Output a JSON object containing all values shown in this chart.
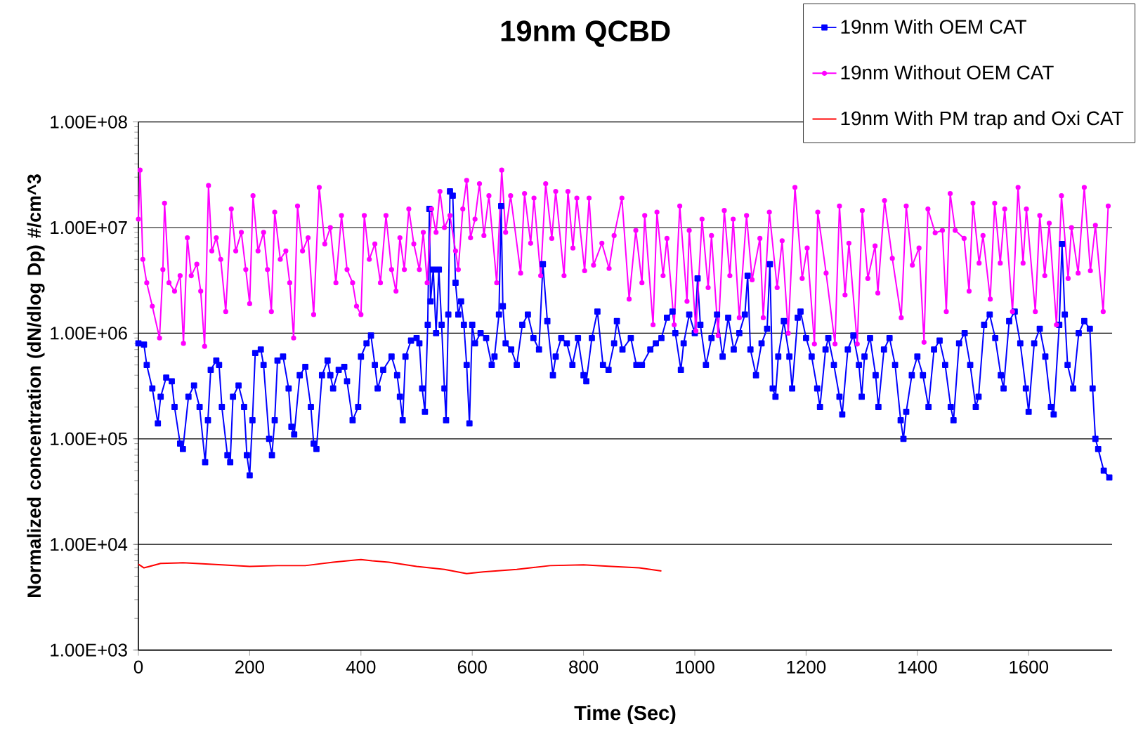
{
  "chart_data": {
    "type": "line",
    "title": "19nm QCBD",
    "xlabel": "Time (Sec)",
    "ylabel": "Normalized concentration (dN/dlog Dp) #/cm^3",
    "log": true,
    "grid": "y",
    "legend": "top right",
    "xlim": [
      0,
      1750
    ],
    "xticks": [
      0,
      200,
      400,
      600,
      800,
      1000,
      1200,
      1400,
      1600
    ],
    "ylim": [
      1000,
      100000000
    ],
    "yticks": [
      {
        "value": 1000,
        "label": "1.00E+03"
      },
      {
        "value": 10000,
        "label": "1.00E+04"
      },
      {
        "value": 100000,
        "label": "1.00E+05"
      },
      {
        "value": 1000000,
        "label": "1.00E+06"
      },
      {
        "value": 10000000,
        "label": "1.00E+07"
      },
      {
        "value": 100000000,
        "label": "1.00E+08"
      }
    ],
    "series": [
      {
        "name": "19nm With OEM CAT",
        "color": "#0000ff",
        "marker": "square",
        "x": [
          0,
          10,
          15,
          25,
          35,
          40,
          50,
          60,
          65,
          75,
          80,
          90,
          100,
          110,
          120,
          125,
          130,
          140,
          145,
          150,
          160,
          165,
          170,
          180,
          190,
          195,
          200,
          205,
          210,
          220,
          225,
          235,
          240,
          245,
          250,
          260,
          270,
          275,
          280,
          290,
          300,
          310,
          315,
          320,
          330,
          340,
          345,
          350,
          360,
          370,
          375,
          385,
          395,
          400,
          410,
          418,
          425,
          430,
          440,
          455,
          465,
          470,
          475,
          480,
          490,
          500,
          505,
          510,
          515,
          520,
          523,
          525,
          530,
          535,
          540,
          545,
          550,
          553,
          557,
          560,
          565,
          570,
          575,
          580,
          585,
          590,
          595,
          600,
          605,
          615,
          625,
          635,
          640,
          648,
          652,
          655,
          660,
          670,
          680,
          690,
          700,
          710,
          720,
          727,
          735,
          745,
          750,
          760,
          770,
          780,
          790,
          800,
          805,
          815,
          825,
          835,
          845,
          855,
          860,
          870,
          885,
          895,
          905,
          920,
          930,
          940,
          950,
          960,
          965,
          975,
          980,
          990,
          1000,
          1005,
          1010,
          1020,
          1030,
          1040,
          1050,
          1060,
          1070,
          1080,
          1090,
          1095,
          1100,
          1110,
          1120,
          1130,
          1135,
          1140,
          1145,
          1150,
          1160,
          1170,
          1175,
          1185,
          1190,
          1200,
          1210,
          1220,
          1225,
          1235,
          1240,
          1250,
          1260,
          1265,
          1275,
          1285,
          1295,
          1300,
          1305,
          1315,
          1325,
          1330,
          1340,
          1350,
          1360,
          1370,
          1375,
          1380,
          1390,
          1400,
          1410,
          1420,
          1430,
          1440,
          1450,
          1460,
          1465,
          1475,
          1485,
          1495,
          1505,
          1510,
          1520,
          1530,
          1540,
          1550,
          1555,
          1565,
          1575,
          1585,
          1595,
          1600,
          1610,
          1620,
          1630,
          1640,
          1645,
          1655,
          1660,
          1665,
          1670,
          1680,
          1690,
          1700,
          1710,
          1715,
          1720,
          1725,
          1735,
          1745
        ],
        "values": [
          800000,
          780000,
          500000,
          300000,
          140000,
          250000,
          380000,
          350000,
          200000,
          90000,
          80000,
          250000,
          320000,
          200000,
          60000,
          150000,
          450000,
          550000,
          500000,
          200000,
          70000,
          60000,
          250000,
          320000,
          200000,
          70000,
          45000,
          150000,
          650000,
          700000,
          500000,
          100000,
          70000,
          150000,
          550000,
          600000,
          300000,
          130000,
          110000,
          400000,
          480000,
          200000,
          90000,
          80000,
          400000,
          550000,
          400000,
          300000,
          450000,
          480000,
          350000,
          150000,
          200000,
          600000,
          800000,
          950000,
          500000,
          300000,
          450000,
          600000,
          400000,
          250000,
          150000,
          600000,
          850000,
          900000,
          800000,
          300000,
          180000,
          1200000,
          15000000,
          2000000,
          4000000,
          1000000,
          4000000,
          1200000,
          300000,
          150000,
          1500000,
          22000000,
          20000000,
          3000000,
          1500000,
          2000000,
          1200000,
          500000,
          140000,
          1200000,
          800000,
          1000000,
          900000,
          500000,
          600000,
          1500000,
          16000000,
          1800000,
          800000,
          700000,
          500000,
          1200000,
          1500000,
          900000,
          700000,
          4500000,
          1300000,
          400000,
          600000,
          900000,
          800000,
          500000,
          900000,
          400000,
          350000,
          900000,
          1600000,
          500000,
          450000,
          800000,
          1300000,
          700000,
          900000,
          500000,
          500000,
          700000,
          800000,
          900000,
          1400000,
          1600000,
          1000000,
          450000,
          800000,
          1500000,
          1000000,
          3300000,
          1200000,
          500000,
          900000,
          1500000,
          600000,
          1400000,
          700000,
          1000000,
          1500000,
          3500000,
          700000,
          400000,
          800000,
          1100000,
          4500000,
          300000,
          250000,
          600000,
          1300000,
          600000,
          300000,
          1400000,
          1600000,
          900000,
          600000,
          300000,
          200000,
          700000,
          900000,
          500000,
          250000,
          170000,
          700000,
          950000,
          500000,
          250000,
          600000,
          900000,
          400000,
          200000,
          700000,
          900000,
          500000,
          150000,
          100000,
          180000,
          400000,
          600000,
          400000,
          200000,
          700000,
          850000,
          500000,
          200000,
          150000,
          800000,
          1000000,
          500000,
          200000,
          250000,
          1200000,
          1500000,
          900000,
          400000,
          300000,
          1300000,
          1600000,
          800000,
          300000,
          180000,
          800000,
          1100000,
          600000,
          200000,
          170000,
          1200000,
          7000000,
          1500000,
          500000,
          300000,
          1000000,
          1300000,
          1100000,
          300000,
          100000,
          80000,
          50000,
          43000
        ]
      },
      {
        "name": "19nm Without OEM CAT",
        "color": "#ff00ff",
        "marker": "circle",
        "x": [
          0,
          3,
          8,
          15,
          25,
          38,
          44,
          47,
          55,
          65,
          75,
          81,
          88,
          95,
          105,
          112,
          119,
          126,
          132,
          140,
          148,
          157,
          167,
          175,
          185,
          193,
          200,
          206,
          215,
          225,
          232,
          239,
          245,
          255,
          265,
          272,
          279,
          286,
          295,
          305,
          315,
          325,
          335,
          345,
          355,
          365,
          375,
          385,
          392,
          400,
          406,
          415,
          425,
          435,
          445,
          455,
          463,
          470,
          478,
          486,
          495,
          505,
          512,
          519,
          527,
          535,
          542,
          550,
          560,
          570,
          575,
          583,
          590,
          597,
          605,
          613,
          621,
          630,
          644,
          653,
          660,
          669,
          687,
          694,
          705,
          711,
          723,
          732,
          743,
          750,
          765,
          772,
          781,
          788,
          802,
          810,
          818,
          833,
          846,
          855,
          869,
          882,
          894,
          905,
          910,
          925,
          932,
          943,
          950,
          963,
          973,
          986,
          990,
          1002,
          1013,
          1024,
          1030,
          1042,
          1053,
          1063,
          1069,
          1080,
          1093,
          1103,
          1117,
          1123,
          1134,
          1148,
          1157,
          1168,
          1180,
          1193,
          1202,
          1215,
          1221,
          1236,
          1252,
          1260,
          1270,
          1277,
          1292,
          1301,
          1311,
          1324,
          1329,
          1341,
          1355,
          1371,
          1380,
          1391,
          1403,
          1412,
          1419,
          1432,
          1445,
          1452,
          1459,
          1468,
          1484,
          1493,
          1500,
          1511,
          1518,
          1531,
          1539,
          1549,
          1557,
          1571,
          1581,
          1590,
          1596,
          1612,
          1620,
          1629,
          1637,
          1650,
          1659,
          1671,
          1677,
          1689,
          1700,
          1711,
          1720,
          1734,
          1743
        ],
        "values": [
          12000000,
          35000000,
          5000000,
          3000000,
          1800000,
          900000,
          4000000,
          17000000,
          3000000,
          2500000,
          3500000,
          800000,
          8000000,
          3500000,
          4500000,
          2500000,
          750000,
          25000000,
          6000000,
          8000000,
          5000000,
          1600000,
          15000000,
          6000000,
          9000000,
          4000000,
          1900000,
          20000000,
          6000000,
          9000000,
          4000000,
          1600000,
          14000000,
          5000000,
          6000000,
          3000000,
          900000,
          16000000,
          6000000,
          8000000,
          1500000,
          24000000,
          7000000,
          10000000,
          3000000,
          13000000,
          4000000,
          3000000,
          1800000,
          1500000,
          13000000,
          5000000,
          7000000,
          3000000,
          13000000,
          4000000,
          2500000,
          8000000,
          4000000,
          15000000,
          7000000,
          4000000,
          9000000,
          3000000,
          15000000,
          9000000,
          22000000,
          10000000,
          13000000,
          6000000,
          4000000,
          15000000,
          28000000,
          8000000,
          12000000,
          26000000,
          8400000,
          20000000,
          3000000,
          35000000,
          9000000,
          20000000,
          3700000,
          21000000,
          7100000,
          19000000,
          3500000,
          26000000,
          7900000,
          22000000,
          3500000,
          22000000,
          6400000,
          19000000,
          3900000,
          19000000,
          4400000,
          7100000,
          4100000,
          8400000,
          19000000,
          2100000,
          9400000,
          3000000,
          13000000,
          1200000,
          14000000,
          3500000,
          7900000,
          1200000,
          16000000,
          2000000,
          9400000,
          1050000,
          12000000,
          2700000,
          8400000,
          950000,
          14500000,
          3500000,
          12000000,
          1400000,
          13000000,
          3200000,
          7900000,
          1400000,
          14000000,
          2700000,
          7500000,
          1000000,
          24000000,
          3300000,
          6400000,
          790000,
          14000000,
          3700000,
          790000,
          16000000,
          2300000,
          7100000,
          790000,
          14500000,
          3300000,
          6700000,
          2400000,
          18000000,
          5100000,
          1400000,
          16000000,
          4400000,
          6400000,
          820000,
          15000000,
          8900000,
          9400000,
          1600000,
          21000000,
          9400000,
          7900000,
          2500000,
          17000000,
          4600000,
          8400000,
          2100000,
          17000000,
          4600000,
          15000000,
          1600000,
          24000000,
          4600000,
          15000000,
          1600000,
          13000000,
          3500000,
          11000000,
          1200000,
          20000000,
          3300000,
          10000000,
          3700000,
          24000000,
          3900000,
          10500000,
          1600000,
          16000000
        ]
      },
      {
        "name": "19nm With PM trap and Oxi CAT",
        "color": "#ff0000",
        "marker": "none",
        "x": [
          0,
          10,
          20,
          40,
          80,
          150,
          200,
          250,
          300,
          350,
          400,
          420,
          450,
          500,
          550,
          590,
          620,
          680,
          740,
          800,
          850,
          900,
          940
        ],
        "values": [
          6500,
          6000,
          6200,
          6600,
          6700,
          6400,
          6200,
          6300,
          6300,
          6800,
          7200,
          7000,
          6800,
          6200,
          5800,
          5300,
          5500,
          5800,
          6300,
          6400,
          6200,
          6000,
          5600
        ]
      }
    ]
  }
}
